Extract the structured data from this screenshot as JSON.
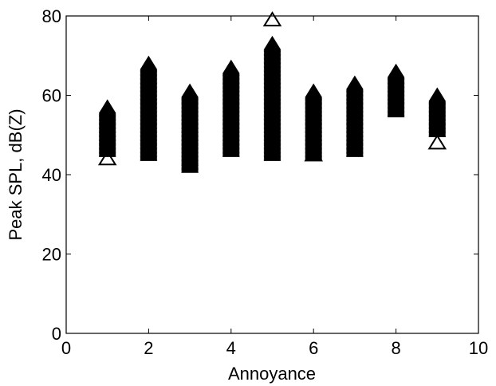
{
  "chart_data": {
    "type": "scatter",
    "xlabel": "Annoyance",
    "ylabel": "Peak SPL, dB(Z)",
    "xlim": [
      0,
      10
    ],
    "ylim": [
      0,
      80
    ],
    "xticks": [
      0,
      2,
      4,
      6,
      8,
      10
    ],
    "yticks": [
      0,
      20,
      40,
      60,
      80
    ],
    "grid": false,
    "marker": "triangle",
    "marker_color": "#000000",
    "columns": [
      {
        "x": 1,
        "min": 46,
        "max": 57
      },
      {
        "x": 2,
        "min": 45,
        "max": 68
      },
      {
        "x": 3,
        "min": 42,
        "max": 61
      },
      {
        "x": 4,
        "min": 46,
        "max": 67
      },
      {
        "x": 5,
        "min": 45,
        "max": 73
      },
      {
        "x": 6,
        "min": 45,
        "max": 61
      },
      {
        "x": 7,
        "min": 46,
        "max": 63
      },
      {
        "x": 8,
        "min": 56,
        "max": 66
      },
      {
        "x": 9,
        "min": 51,
        "max": 60
      }
    ],
    "outliers": [
      {
        "x": 1,
        "y": 44
      },
      {
        "x": 5,
        "y": 79
      },
      {
        "x": 6,
        "y": 45
      },
      {
        "x": 9,
        "y": 48
      }
    ]
  }
}
